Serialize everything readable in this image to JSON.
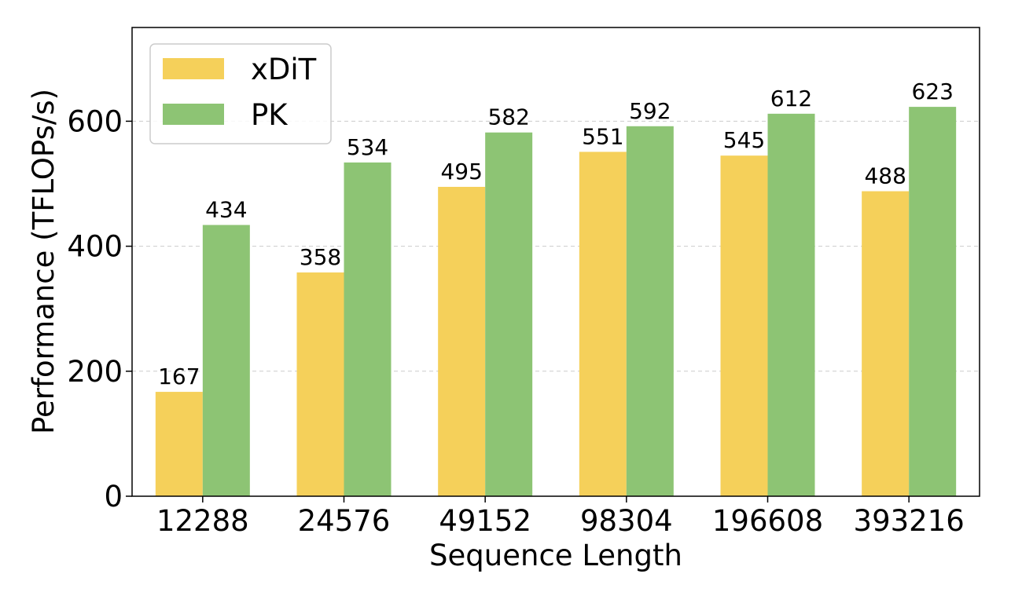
{
  "chart_data": {
    "type": "bar",
    "title": "",
    "xlabel": "Sequence Length",
    "ylabel": "Performance (TFLOPs/s)",
    "categories": [
      "12288",
      "24576",
      "49152",
      "98304",
      "196608",
      "393216"
    ],
    "series": [
      {
        "name": "xDiT",
        "color": "#f5d05a",
        "values": [
          167,
          358,
          495,
          551,
          545,
          488
        ]
      },
      {
        "name": "PK",
        "color": "#8dc474",
        "values": [
          434,
          534,
          582,
          592,
          612,
          623
        ]
      }
    ],
    "ylim": [
      0,
      750
    ],
    "yticks": [
      0,
      200,
      400,
      600
    ],
    "grid": true,
    "legend_position": "top-left"
  }
}
